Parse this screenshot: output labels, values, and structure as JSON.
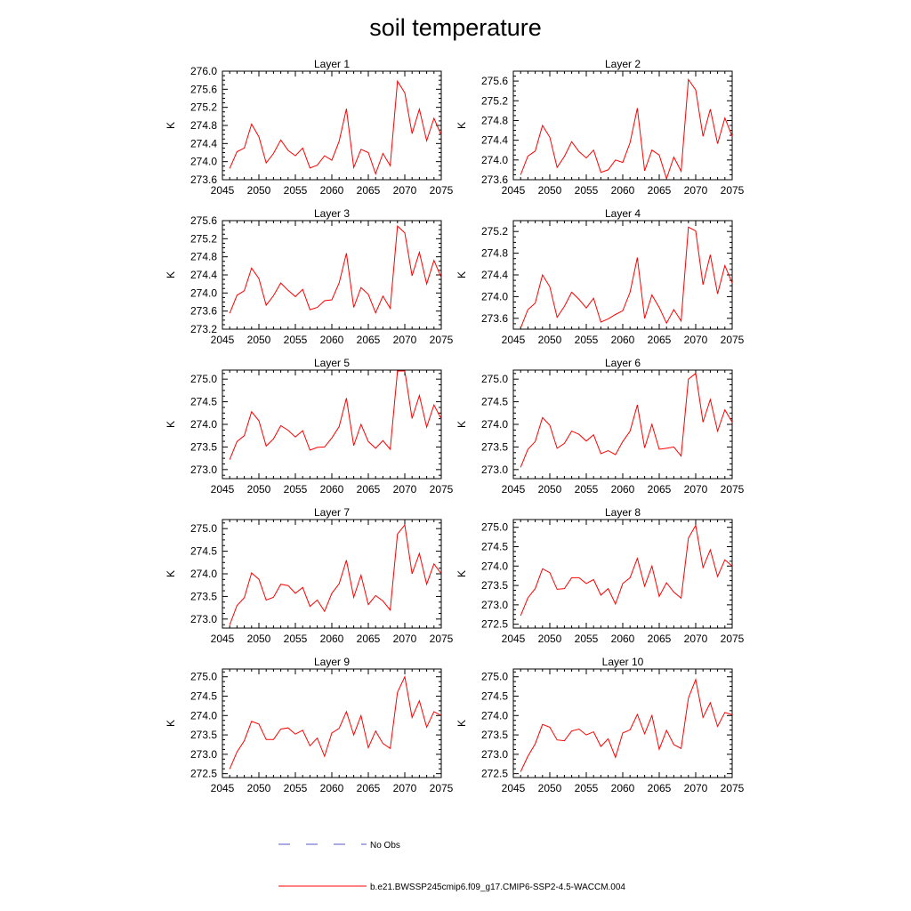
{
  "title": "soil temperature",
  "legend": {
    "position": "bottom-center",
    "items": [
      {
        "label": "No Obs",
        "color": "#5555cc",
        "style": "dashed"
      },
      {
        "label": "b.e21.BWSSP245cmip6.f09_g17.CMIP6-SSP2-4.5-WACCM.004",
        "color": "#ff0000",
        "style": "solid"
      }
    ]
  },
  "chart_data": [
    {
      "type": "line",
      "title": "Layer 1",
      "ylabel": "K",
      "xlim": [
        2045,
        2075
      ],
      "ylim": [
        273.6,
        276.0
      ],
      "xticks": [
        2045,
        2050,
        2055,
        2060,
        2065,
        2070,
        2075
      ],
      "yticks": [
        "273.6",
        "274.0",
        "274.4",
        "274.8",
        "275.2",
        "275.6",
        "276.0"
      ],
      "x": [
        2046,
        2047,
        2048,
        2049,
        2050,
        2051,
        2052,
        2053,
        2054,
        2055,
        2056,
        2057,
        2058,
        2059,
        2060,
        2061,
        2062,
        2063,
        2064,
        2065,
        2066,
        2067,
        2068,
        2069,
        2070,
        2071,
        2072,
        2073,
        2074,
        2075
      ],
      "series": [
        {
          "values": [
            273.85,
            274.22,
            274.3,
            274.83,
            274.55,
            273.97,
            274.18,
            274.48,
            274.25,
            274.13,
            274.3,
            273.86,
            273.92,
            274.13,
            274.03,
            274.45,
            275.17,
            273.87,
            274.27,
            274.2,
            273.73,
            274.18,
            273.91,
            275.78,
            275.52,
            274.62,
            275.16,
            274.46,
            274.96,
            274.58
          ],
          "color": "#ff0000"
        }
      ]
    },
    {
      "type": "line",
      "title": "Layer 2",
      "ylabel": "K",
      "xlim": [
        2045,
        2075
      ],
      "ylim": [
        273.6,
        275.8
      ],
      "xticks": [
        2045,
        2050,
        2055,
        2060,
        2065,
        2070,
        2075
      ],
      "yticks": [
        "273.6",
        "274.0",
        "274.4",
        "274.8",
        "275.2",
        "275.6"
      ],
      "x": [
        2046,
        2047,
        2048,
        2049,
        2050,
        2051,
        2052,
        2053,
        2054,
        2055,
        2056,
        2057,
        2058,
        2059,
        2060,
        2061,
        2062,
        2063,
        2064,
        2065,
        2066,
        2067,
        2068,
        2069,
        2070,
        2071,
        2072,
        2073,
        2074,
        2075
      ],
      "series": [
        {
          "values": [
            273.7,
            274.08,
            274.18,
            274.7,
            274.46,
            273.85,
            274.07,
            274.37,
            274.17,
            274.04,
            274.2,
            273.75,
            273.8,
            274.0,
            273.95,
            274.35,
            275.05,
            273.78,
            274.2,
            274.1,
            273.62,
            274.06,
            273.77,
            275.63,
            275.42,
            274.48,
            275.03,
            274.33,
            274.85,
            274.48
          ],
          "color": "#ff0000"
        }
      ]
    },
    {
      "type": "line",
      "title": "Layer 3",
      "ylabel": "K",
      "xlim": [
        2045,
        2075
      ],
      "ylim": [
        273.2,
        275.6
      ],
      "xticks": [
        2045,
        2050,
        2055,
        2060,
        2065,
        2070,
        2075
      ],
      "yticks": [
        "273.2",
        "273.6",
        "274.0",
        "274.4",
        "274.8",
        "275.2",
        "275.6"
      ],
      "x": [
        2046,
        2047,
        2048,
        2049,
        2050,
        2051,
        2052,
        2053,
        2054,
        2055,
        2056,
        2057,
        2058,
        2059,
        2060,
        2061,
        2062,
        2063,
        2064,
        2065,
        2066,
        2067,
        2068,
        2069,
        2070,
        2071,
        2072,
        2073,
        2074,
        2075
      ],
      "series": [
        {
          "values": [
            273.55,
            273.95,
            274.05,
            274.55,
            274.32,
            273.73,
            273.94,
            274.22,
            274.06,
            273.92,
            274.08,
            273.63,
            273.68,
            273.83,
            273.85,
            274.22,
            274.88,
            273.68,
            274.12,
            273.97,
            273.56,
            273.93,
            273.66,
            275.48,
            275.33,
            274.38,
            274.9,
            274.2,
            274.72,
            274.34
          ],
          "color": "#ff0000"
        }
      ]
    },
    {
      "type": "line",
      "title": "Layer 4",
      "ylabel": "K",
      "xlim": [
        2045,
        2075
      ],
      "ylim": [
        273.4,
        275.4
      ],
      "xticks": [
        2045,
        2050,
        2055,
        2060,
        2065,
        2070,
        2075
      ],
      "yticks": [
        "273.6",
        "274.0",
        "274.4",
        "274.8",
        "275.2"
      ],
      "x": [
        2046,
        2047,
        2048,
        2049,
        2050,
        2051,
        2052,
        2053,
        2054,
        2055,
        2056,
        2057,
        2058,
        2059,
        2060,
        2061,
        2062,
        2063,
        2064,
        2065,
        2066,
        2067,
        2068,
        2069,
        2070,
        2071,
        2072,
        2073,
        2074,
        2075
      ],
      "series": [
        {
          "values": [
            273.42,
            273.76,
            273.88,
            274.4,
            274.18,
            273.62,
            273.82,
            274.08,
            273.95,
            273.79,
            273.97,
            273.53,
            273.59,
            273.67,
            273.74,
            274.08,
            274.72,
            273.6,
            274.03,
            273.8,
            273.51,
            273.76,
            273.55,
            275.28,
            275.21,
            274.22,
            274.77,
            274.05,
            274.57,
            274.25
          ],
          "color": "#ff0000"
        }
      ]
    },
    {
      "type": "line",
      "title": "Layer 5",
      "ylabel": "K",
      "xlim": [
        2045,
        2075
      ],
      "ylim": [
        272.8,
        275.2
      ],
      "xticks": [
        2045,
        2050,
        2055,
        2060,
        2065,
        2070,
        2075
      ],
      "yticks": [
        "273.0",
        "273.5",
        "274.0",
        "274.5",
        "275.0"
      ],
      "x": [
        2046,
        2047,
        2048,
        2049,
        2050,
        2051,
        2052,
        2053,
        2054,
        2055,
        2056,
        2057,
        2058,
        2059,
        2060,
        2061,
        2062,
        2063,
        2064,
        2065,
        2066,
        2067,
        2068,
        2069,
        2070,
        2071,
        2072,
        2073,
        2074,
        2075
      ],
      "series": [
        {
          "values": [
            273.22,
            273.62,
            273.75,
            274.28,
            274.08,
            273.52,
            273.68,
            273.97,
            273.87,
            273.72,
            273.86,
            273.43,
            273.49,
            273.5,
            273.7,
            273.95,
            274.58,
            273.53,
            274.0,
            273.62,
            273.47,
            273.64,
            273.45,
            275.18,
            275.18,
            274.13,
            274.64,
            273.94,
            274.43,
            274.12
          ],
          "color": "#ff0000"
        }
      ]
    },
    {
      "type": "line",
      "title": "Layer 6",
      "ylabel": "K",
      "xlim": [
        2045,
        2075
      ],
      "ylim": [
        272.8,
        275.2
      ],
      "xticks": [
        2045,
        2050,
        2055,
        2060,
        2065,
        2070,
        2075
      ],
      "yticks": [
        "273.0",
        "273.5",
        "274.0",
        "274.5",
        "275.0"
      ],
      "x": [
        2046,
        2047,
        2048,
        2049,
        2050,
        2051,
        2052,
        2053,
        2054,
        2055,
        2056,
        2057,
        2058,
        2059,
        2060,
        2061,
        2062,
        2063,
        2064,
        2065,
        2066,
        2067,
        2068,
        2069,
        2070,
        2071,
        2072,
        2073,
        2074,
        2075
      ],
      "series": [
        {
          "values": [
            273.05,
            273.45,
            273.62,
            274.15,
            273.98,
            273.47,
            273.58,
            273.85,
            273.78,
            273.63,
            273.77,
            273.35,
            273.42,
            273.33,
            273.62,
            273.85,
            274.43,
            273.48,
            274.0,
            273.45,
            273.47,
            273.5,
            273.3,
            275.0,
            275.13,
            274.05,
            274.55,
            273.85,
            274.32,
            274.05
          ],
          "color": "#ff0000"
        }
      ]
    },
    {
      "type": "line",
      "title": "Layer 7",
      "ylabel": "K",
      "xlim": [
        2045,
        2075
      ],
      "ylim": [
        272.8,
        275.2
      ],
      "xticks": [
        2045,
        2050,
        2055,
        2060,
        2065,
        2070,
        2075
      ],
      "yticks": [
        "273.0",
        "273.5",
        "274.0",
        "274.5",
        "275.0"
      ],
      "x": [
        2046,
        2047,
        2048,
        2049,
        2050,
        2051,
        2052,
        2053,
        2054,
        2055,
        2056,
        2057,
        2058,
        2059,
        2060,
        2061,
        2062,
        2063,
        2064,
        2065,
        2066,
        2067,
        2068,
        2069,
        2070,
        2071,
        2072,
        2073,
        2074,
        2075
      ],
      "series": [
        {
          "values": [
            272.87,
            273.3,
            273.47,
            274.02,
            273.88,
            273.42,
            273.48,
            273.77,
            273.74,
            273.57,
            273.7,
            273.28,
            273.42,
            273.17,
            273.57,
            273.78,
            274.3,
            273.48,
            273.97,
            273.32,
            273.52,
            273.4,
            273.2,
            274.88,
            275.08,
            274.0,
            274.45,
            273.77,
            274.22,
            274.0
          ],
          "color": "#ff0000"
        }
      ]
    },
    {
      "type": "line",
      "title": "Layer 8",
      "ylabel": "K",
      "xlim": [
        2045,
        2075
      ],
      "ylim": [
        272.4,
        275.2
      ],
      "xticks": [
        2045,
        2050,
        2055,
        2060,
        2065,
        2070,
        2075
      ],
      "yticks": [
        "272.5",
        "273.0",
        "273.5",
        "274.0",
        "274.5",
        "275.0"
      ],
      "x": [
        2046,
        2047,
        2048,
        2049,
        2050,
        2051,
        2052,
        2053,
        2054,
        2055,
        2056,
        2057,
        2058,
        2059,
        2060,
        2061,
        2062,
        2063,
        2064,
        2065,
        2066,
        2067,
        2068,
        2069,
        2070,
        2071,
        2072,
        2073,
        2074,
        2075
      ],
      "series": [
        {
          "values": [
            272.72,
            273.18,
            273.42,
            273.93,
            273.83,
            273.4,
            273.42,
            273.7,
            273.7,
            273.55,
            273.65,
            273.25,
            273.42,
            273.02,
            273.55,
            273.7,
            274.2,
            273.48,
            274.0,
            273.22,
            273.57,
            273.33,
            273.17,
            274.72,
            275.05,
            273.96,
            274.42,
            273.73,
            274.16,
            274.0
          ],
          "color": "#ff0000"
        }
      ]
    },
    {
      "type": "line",
      "title": "Layer 9",
      "ylabel": "K",
      "xlim": [
        2045,
        2075
      ],
      "ylim": [
        272.4,
        275.2
      ],
      "xticks": [
        2045,
        2050,
        2055,
        2060,
        2065,
        2070,
        2075
      ],
      "yticks": [
        "272.5",
        "273.0",
        "273.5",
        "274.0",
        "274.5",
        "275.0"
      ],
      "x": [
        2046,
        2047,
        2048,
        2049,
        2050,
        2051,
        2052,
        2053,
        2054,
        2055,
        2056,
        2057,
        2058,
        2059,
        2060,
        2061,
        2062,
        2063,
        2064,
        2065,
        2066,
        2067,
        2068,
        2069,
        2070,
        2071,
        2072,
        2073,
        2074,
        2075
      ],
      "series": [
        {
          "values": [
            272.62,
            273.06,
            273.35,
            273.85,
            273.78,
            273.38,
            273.38,
            273.65,
            273.68,
            273.52,
            273.62,
            273.22,
            273.42,
            272.95,
            273.55,
            273.67,
            274.1,
            273.5,
            274.0,
            273.17,
            273.6,
            273.28,
            273.15,
            274.6,
            275.0,
            273.95,
            274.38,
            273.7,
            274.1,
            274.0
          ],
          "color": "#ff0000"
        }
      ]
    },
    {
      "type": "line",
      "title": "Layer 10",
      "ylabel": "K",
      "xlim": [
        2045,
        2075
      ],
      "ylim": [
        272.4,
        275.2
      ],
      "xticks": [
        2045,
        2050,
        2055,
        2060,
        2065,
        2070,
        2075
      ],
      "yticks": [
        "272.5",
        "273.0",
        "273.5",
        "274.0",
        "274.5",
        "275.0"
      ],
      "x": [
        2046,
        2047,
        2048,
        2049,
        2050,
        2051,
        2052,
        2053,
        2054,
        2055,
        2056,
        2057,
        2058,
        2059,
        2060,
        2061,
        2062,
        2063,
        2064,
        2065,
        2066,
        2067,
        2068,
        2069,
        2070,
        2071,
        2072,
        2073,
        2074,
        2075
      ],
      "series": [
        {
          "values": [
            272.55,
            272.95,
            273.27,
            273.77,
            273.7,
            273.37,
            273.35,
            273.6,
            273.65,
            273.5,
            273.58,
            273.2,
            273.4,
            272.92,
            273.55,
            273.63,
            274.03,
            273.53,
            274.0,
            273.13,
            273.62,
            273.25,
            273.15,
            274.45,
            274.93,
            273.95,
            274.33,
            273.72,
            274.08,
            274.02
          ],
          "color": "#ff0000"
        }
      ]
    }
  ]
}
